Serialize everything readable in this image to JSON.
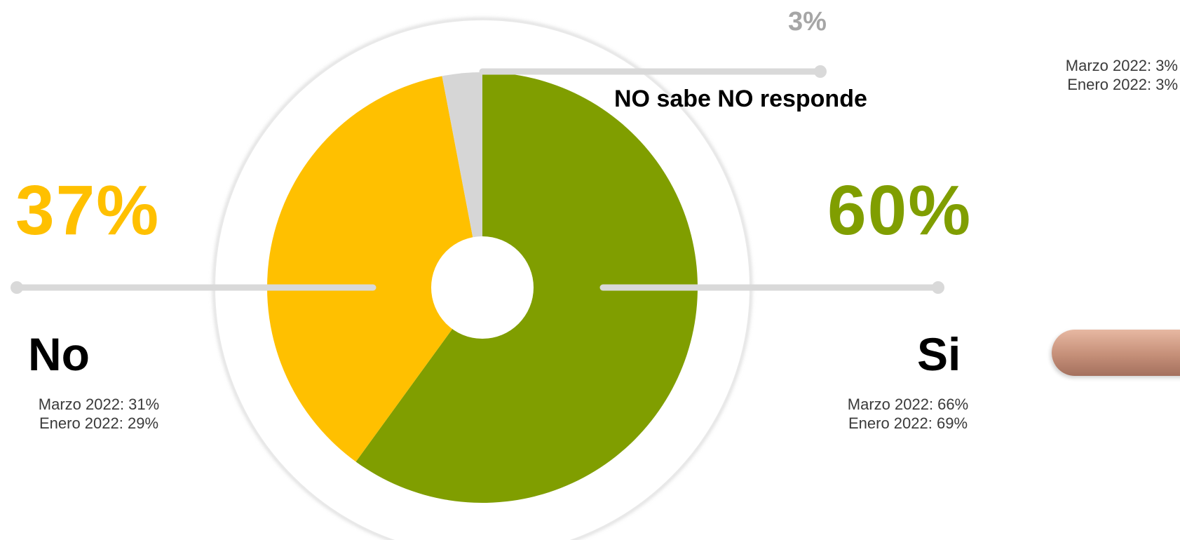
{
  "chart_data": {
    "type": "pie",
    "slices": [
      {
        "label": "Si",
        "value": 60,
        "display": "60%",
        "color": "#809e00",
        "history": [
          "Marzo 2022: 66%",
          "Enero 2022: 69%"
        ]
      },
      {
        "label": "No",
        "value": 37,
        "display": "37%",
        "color": "#ffc000",
        "history": [
          "Marzo 2022: 31%",
          "Enero 2022: 29%"
        ]
      },
      {
        "label": "NO sabe NO responde",
        "value": 3,
        "display": "3%",
        "color": "#d6d6d6",
        "history": [
          "Marzo 2022: 3%",
          "Enero 2022: 3%"
        ]
      }
    ],
    "legend": "none",
    "start": "top",
    "direction": "clockwise",
    "hole": true
  },
  "colors": {
    "line": "#d9d9d9",
    "outer_ring": "#e9e9e9",
    "nsnr_pct": "#a6a6a6"
  }
}
